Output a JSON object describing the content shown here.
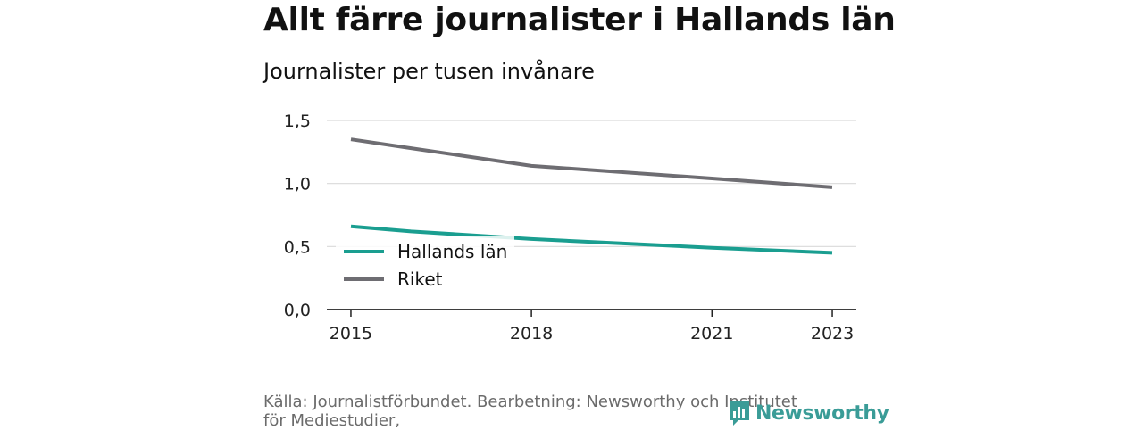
{
  "header": {
    "title": "Allt färre journalister i Hallands län",
    "subtitle": "Journalister per tusen invånare"
  },
  "chart_data": {
    "type": "line",
    "x": [
      2015,
      2018,
      2021,
      2023
    ],
    "x_tick_labels": [
      "2015",
      "2018",
      "2021",
      "2023"
    ],
    "y_tick_values": [
      0,
      0.5,
      1.0,
      1.5
    ],
    "y_tick_labels": [
      "0,0",
      "0,5",
      "1,0",
      "1,5"
    ],
    "ylim": [
      0,
      1.5
    ],
    "xlim": [
      2014.6,
      2023.4
    ],
    "grid": true,
    "legend_position": "bottom-left",
    "series": [
      {
        "name": "Hallands län",
        "color": "#1a9e90",
        "x": [
          2015,
          2016,
          2017,
          2018,
          2021,
          2023
        ],
        "values": [
          0.66,
          0.62,
          0.59,
          0.56,
          0.49,
          0.45
        ]
      },
      {
        "name": "Riket",
        "color": "#6e6d72",
        "x": [
          2015,
          2016,
          2017,
          2018,
          2021,
          2023
        ],
        "values": [
          1.35,
          1.28,
          1.21,
          1.14,
          1.04,
          0.97
        ]
      }
    ]
  },
  "footer": {
    "source": "Källa: Journalistförbundet. Bearbetning: Newsworthy och Institutet för Mediestudier,",
    "logo_text": "Newsworthy",
    "logo_icon": "newsworthy-chart-icon"
  }
}
